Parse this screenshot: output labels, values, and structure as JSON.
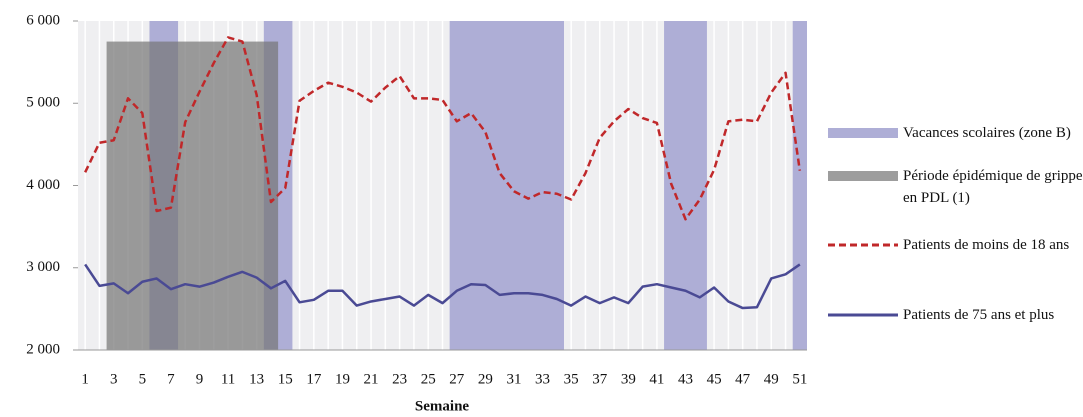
{
  "chart_data": {
    "type": "line",
    "x_label": "Semaine",
    "x": [
      1,
      2,
      3,
      4,
      5,
      6,
      7,
      8,
      9,
      10,
      11,
      12,
      13,
      14,
      15,
      16,
      17,
      18,
      19,
      20,
      21,
      22,
      23,
      24,
      25,
      26,
      27,
      28,
      29,
      30,
      31,
      32,
      33,
      34,
      35,
      36,
      37,
      38,
      39,
      40,
      41,
      42,
      43,
      44,
      45,
      46,
      47,
      48,
      49,
      50,
      51
    ],
    "xlim": [
      0.5,
      51.5
    ],
    "xticks": [
      1,
      3,
      5,
      7,
      9,
      11,
      13,
      15,
      17,
      19,
      21,
      23,
      25,
      27,
      29,
      31,
      33,
      35,
      37,
      39,
      41,
      43,
      45,
      47,
      49,
      51
    ],
    "ylim": [
      2000,
      6000
    ],
    "yticks": [
      {
        "value": 2000,
        "label": "2 000"
      },
      {
        "value": 3000,
        "label": "3 000"
      },
      {
        "value": 4000,
        "label": "4 000"
      },
      {
        "value": 5000,
        "label": "5 000"
      },
      {
        "value": 6000,
        "label": "6 000"
      }
    ],
    "xgrid": true,
    "legend": "right",
    "series": [
      {
        "name": "Vacances scolaires (zone B)",
        "color": "#aeaed6",
        "spans": [
          [
            5.5,
            7.5
          ],
          [
            13.5,
            15.5
          ],
          [
            26.5,
            34.5
          ],
          [
            41.5,
            44.5
          ],
          [
            50.5,
            51.5
          ]
        ]
      },
      {
        "name": "Période épidémique de grippe en PDL (1)",
        "color": "#777777",
        "spans": [
          [
            2.5,
            14.5
          ]
        ],
        "top": 5750
      },
      {
        "name": "Patients de moins de 18 ans",
        "color": "#c0282a",
        "dashed": true,
        "values": [
          4160,
          4520,
          4550,
          5060,
          4880,
          3690,
          3730,
          4770,
          5140,
          5490,
          5800,
          5750,
          5100,
          3800,
          3970,
          5030,
          5150,
          5250,
          5200,
          5130,
          5020,
          5190,
          5330,
          5060,
          5060,
          5040,
          4780,
          4880,
          4650,
          4150,
          3930,
          3840,
          3920,
          3900,
          3830,
          4150,
          4580,
          4780,
          4930,
          4820,
          4760,
          4020,
          3590,
          3830,
          4190,
          4780,
          4800,
          4780,
          5130,
          5370,
          4180
        ]
      },
      {
        "name": "Patients de 75 ans et plus",
        "color": "#4a4a94",
        "dashed": false,
        "values": [
          3040,
          2780,
          2810,
          2690,
          2830,
          2870,
          2740,
          2800,
          2770,
          2820,
          2890,
          2950,
          2880,
          2750,
          2840,
          2580,
          2610,
          2720,
          2720,
          2540,
          2590,
          2620,
          2650,
          2540,
          2670,
          2570,
          2720,
          2800,
          2790,
          2670,
          2690,
          2690,
          2670,
          2620,
          2540,
          2650,
          2570,
          2640,
          2570,
          2770,
          2800,
          2760,
          2720,
          2640,
          2760,
          2590,
          2510,
          2520,
          2870,
          2920,
          3040
        ]
      }
    ]
  }
}
